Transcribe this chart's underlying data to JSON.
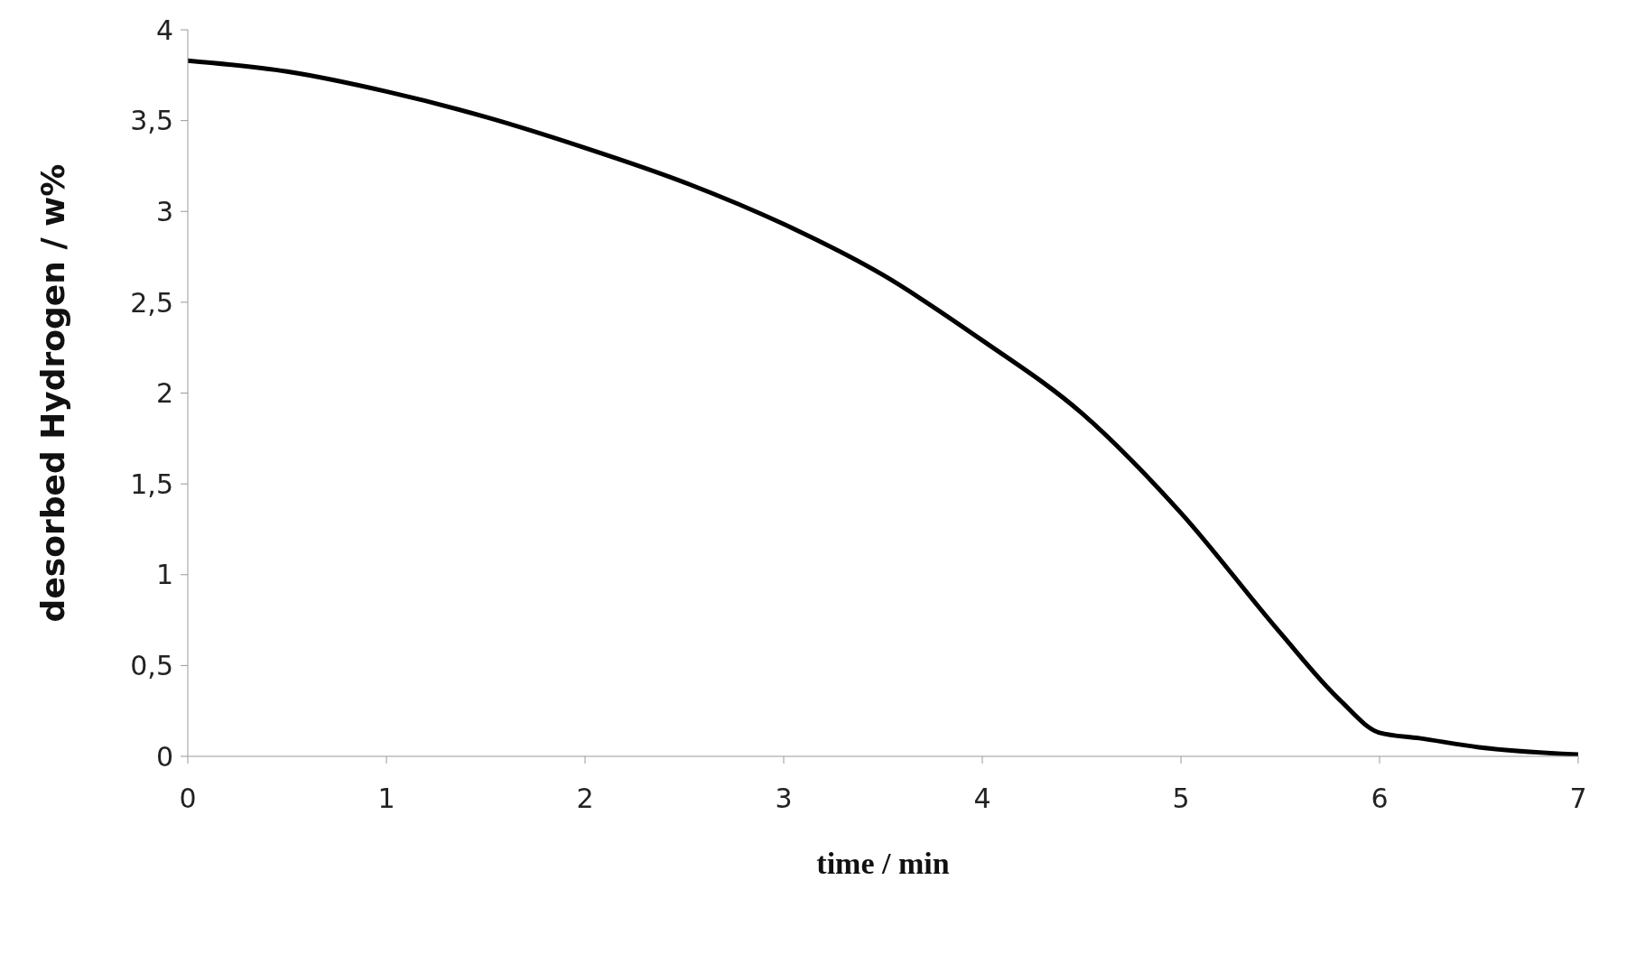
{
  "chart_data": {
    "type": "line",
    "xlabel": "time / min",
    "ylabel": "desorbed Hydrogen / w%",
    "x": [
      0,
      0.5,
      1,
      1.5,
      2,
      2.5,
      3,
      3.5,
      4,
      4.5,
      5,
      5.5,
      5.8,
      6,
      6.2,
      6.5,
      7
    ],
    "series": [
      {
        "color": "#000000",
        "values": [
          3.83,
          3.77,
          3.66,
          3.52,
          3.35,
          3.16,
          2.93,
          2.65,
          2.29,
          1.89,
          1.34,
          0.68,
          0.31,
          0.13,
          0.1,
          0.05,
          0.01
        ]
      }
    ],
    "xlim": [
      0,
      7
    ],
    "xticks": [
      0,
      1,
      2,
      3,
      4,
      5,
      6,
      7
    ],
    "ylim": [
      0,
      4
    ],
    "yticks": [
      0,
      {
        "value": 0.5,
        "label": "0,5"
      },
      1,
      {
        "value": 1.5,
        "label": "1,5"
      },
      2,
      {
        "value": 2.5,
        "label": "2,5"
      },
      3,
      {
        "value": 3.5,
        "label": "3,5"
      },
      4
    ],
    "grid": false,
    "legend": false,
    "marker": "none",
    "line_style": "solid"
  }
}
